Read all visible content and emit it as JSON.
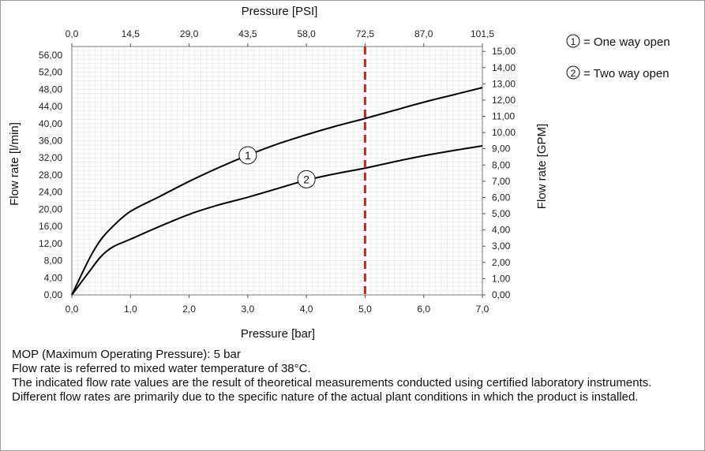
{
  "chart_data": {
    "type": "line",
    "xlabel": "Pressure [bar]",
    "x2label": "Pressure [PSI]",
    "ylabel": "Flow rate [l/min]",
    "y2label": "Flow rate [GPM]",
    "xlim": [
      0,
      7
    ],
    "ylim": [
      0,
      58
    ],
    "x2lim": [
      0,
      101.5
    ],
    "y2lim": [
      0,
      15.3
    ],
    "x_ticks": [
      "0,0",
      "1,0",
      "2,0",
      "3,0",
      "4,0",
      "5,0",
      "6,0",
      "7,0"
    ],
    "x2_ticks": [
      "0,0",
      "14,5",
      "29,0",
      "43,5",
      "58,0",
      "72,5",
      "87,0",
      "101,5"
    ],
    "y_ticks": [
      "0,00",
      "4,00",
      "8,00",
      "12,00",
      "16,00",
      "20,00",
      "24,00",
      "28,00",
      "32,00",
      "36,00",
      "40,00",
      "44,00",
      "48,00",
      "52,00",
      "56,00"
    ],
    "y2_ticks": [
      "0,00",
      "1,00",
      "2,00",
      "3,00",
      "4,00",
      "5,00",
      "6,00",
      "7,00",
      "8,00",
      "9,00",
      "10,00",
      "11,00",
      "12,00",
      "13,00",
      "14,00",
      "15,00"
    ],
    "grid": true,
    "series": [
      {
        "name": "1",
        "color": "#000000",
        "x": [
          0,
          0.3,
          0.5,
          0.7,
          1.0,
          1.5,
          2.0,
          2.5,
          3.0,
          3.5,
          4.0,
          4.5,
          5.0,
          5.5,
          6.0,
          6.5,
          7.0
        ],
        "y": [
          0,
          8.5,
          13.0,
          16.0,
          19.5,
          23.0,
          26.5,
          29.7,
          32.6,
          35.2,
          37.4,
          39.4,
          41.2,
          43.1,
          45.0,
          46.7,
          48.4
        ]
      },
      {
        "name": "2",
        "color": "#000000",
        "x": [
          0,
          0.3,
          0.5,
          0.7,
          1.0,
          1.5,
          2.0,
          2.5,
          3.0,
          3.5,
          4.0,
          4.5,
          5.0,
          5.5,
          6.0,
          6.5,
          7.0
        ],
        "y": [
          0,
          5.5,
          9.0,
          11.2,
          13.0,
          16.0,
          18.8,
          21.0,
          22.8,
          24.8,
          26.8,
          28.3,
          29.6,
          31.1,
          32.5,
          33.7,
          34.8
        ]
      }
    ],
    "marker_labels": [
      {
        "text": "1",
        "x": 3.0,
        "y": 32.6
      },
      {
        "text": "2",
        "x": 4.0,
        "y": 27.0
      }
    ],
    "reference_line": {
      "x": 5.0,
      "color": "#e01b1b",
      "style": "dashed"
    },
    "legend": {
      "placement": "top-right",
      "entries": [
        {
          "symbol": "1",
          "label": "= One way open"
        },
        {
          "symbol": "2",
          "label": "= Two way open"
        }
      ]
    }
  },
  "notes": [
    "MOP (Maximum Operating Pressure): 5 bar",
    "Flow rate is referred to mixed water temperature of 38°C.",
    "The indicated flow rate values are the result of theoretical measurements conducted using certified laboratory instruments.",
    "Different flow rates are primarily due to the specific nature of the actual plant conditions in which the product is installed."
  ]
}
